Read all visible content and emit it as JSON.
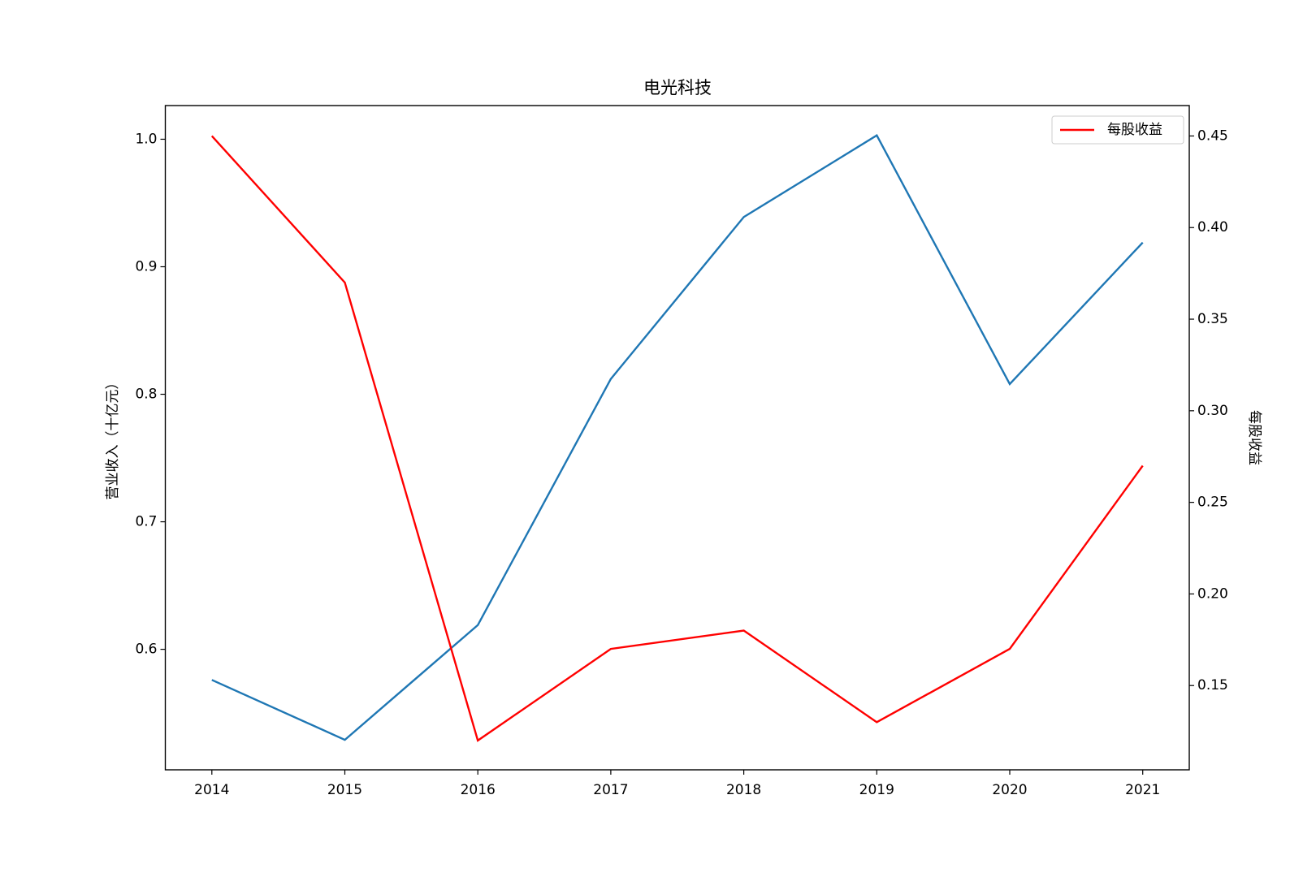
{
  "chart_data": {
    "type": "line",
    "title": "电光科技",
    "y_label": "营业收入（十亿元）",
    "y2_label": "每股收益",
    "x": [
      2014,
      2015,
      2016,
      2017,
      2018,
      2019,
      2020,
      2021
    ],
    "xlim": [
      2013.65,
      2021.35
    ],
    "xticks": [
      2014,
      2015,
      2016,
      2017,
      2018,
      2019,
      2020,
      2021
    ],
    "ylim": [
      0.5055,
      1.0264
    ],
    "yticks": [
      0.6,
      0.7,
      0.8,
      0.9,
      {
        "value": 1,
        "label": "1.0"
      }
    ],
    "y2lim": [
      0.104,
      0.4666
    ],
    "y2ticks": [
      0.15,
      {
        "value": 0.2,
        "label": "0.20"
      },
      0.25,
      {
        "value": 0.3,
        "label": "0.30"
      },
      0.35,
      {
        "value": 0.4,
        "label": "0.40"
      },
      0.45
    ],
    "grid": false,
    "legend": "upper right",
    "series": [
      {
        "color": "#1f77b4",
        "values": [
          0.576,
          0.529,
          0.619,
          0.812,
          0.939,
          1.003,
          0.808,
          0.919
        ]
      },
      {
        "name": "每股收益",
        "color": "#ff0000",
        "axis": "y2",
        "values": [
          0.45,
          0.37,
          0.12,
          0.17,
          0.18,
          0.13,
          0.17,
          0.27
        ]
      }
    ]
  }
}
